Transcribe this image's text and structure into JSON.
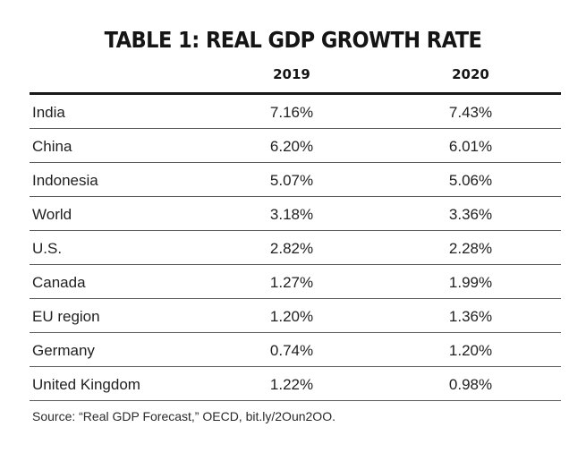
{
  "chart_data": {
    "type": "table",
    "title": "TABLE 1: REAL GDP GROWTH RATE",
    "columns": [
      "2019",
      "2020"
    ],
    "rows": [
      {
        "country": "India",
        "values": [
          "7.16%",
          "7.43%"
        ]
      },
      {
        "country": "China",
        "values": [
          "6.20%",
          "6.01%"
        ]
      },
      {
        "country": "Indonesia",
        "values": [
          "5.07%",
          "5.06%"
        ]
      },
      {
        "country": "World",
        "values": [
          "3.18%",
          "3.36%"
        ]
      },
      {
        "country": "U.S.",
        "values": [
          "2.82%",
          "2.28%"
        ]
      },
      {
        "country": "Canada",
        "values": [
          "1.27%",
          "1.99%"
        ]
      },
      {
        "country": "EU region",
        "values": [
          "1.20%",
          "1.36%"
        ]
      },
      {
        "country": "Germany",
        "values": [
          "0.74%",
          "1.20%"
        ]
      },
      {
        "country": "United Kingdom",
        "values": [
          "1.22%",
          "0.98%"
        ]
      }
    ],
    "source": "Source: “Real GDP Forecast,” OECD, bit.ly/2Oun2OO."
  }
}
